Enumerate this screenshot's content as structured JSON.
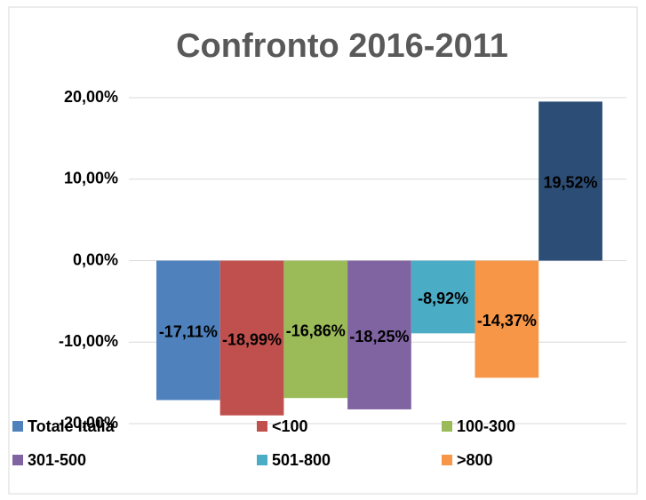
{
  "chart_data": {
    "type": "bar",
    "title": "Confronto 2016-2011",
    "series": [
      {
        "name": "Totale Italia",
        "color": "#4f81bd",
        "values": [
          -17.11
        ],
        "value_labels": [
          "-17,11%"
        ]
      },
      {
        "name": "<100",
        "color": "#c0504d",
        "values": [
          -18.99
        ],
        "value_labels": [
          "-18,99%"
        ]
      },
      {
        "name": "100-300",
        "color": "#9bbb59",
        "values": [
          -16.86
        ],
        "value_labels": [
          "-16,86%"
        ]
      },
      {
        "name": "301-500",
        "color": "#8064a2",
        "values": [
          -18.25
        ],
        "value_labels": [
          "-18,25%"
        ]
      },
      {
        "name": "501-800",
        "color": "#4bacc6",
        "values": [
          -8.92
        ],
        "value_labels": [
          "-8,92%"
        ]
      },
      {
        "name": ">800",
        "color": "#f79646",
        "values": [
          -14.37
        ],
        "value_labels": [
          "-14,37%"
        ]
      },
      {
        "name": "",
        "color": "#2c4d75",
        "values": [
          19.52
        ],
        "value_labels": [
          "19,52%"
        ]
      }
    ],
    "ylim": [
      -20,
      20
    ],
    "yticks": [
      {
        "value": -20,
        "label": "-20,00%"
      },
      {
        "value": -10,
        "label": "-10,00%"
      },
      {
        "value": 0,
        "label": "0,00%"
      },
      {
        "value": 10,
        "label": "10,00%"
      },
      {
        "value": 20,
        "label": "20,00%"
      }
    ],
    "grid": true,
    "legend": "bottom"
  }
}
